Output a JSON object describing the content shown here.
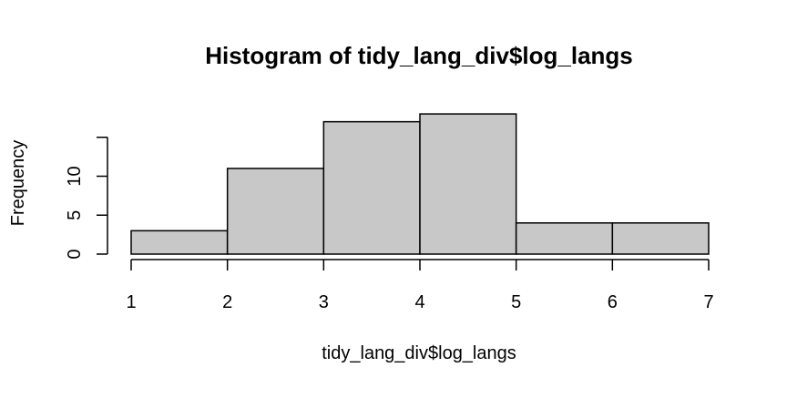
{
  "chart_data": {
    "type": "bar",
    "title": "Histogram of tidy_lang_div$log_langs",
    "xlabel": "tidy_lang_div$log_langs",
    "ylabel": "Frequency",
    "bins": [
      {
        "x0": 1,
        "x1": 2,
        "count": 3
      },
      {
        "x0": 2,
        "x1": 3,
        "count": 11
      },
      {
        "x0": 3,
        "x1": 4,
        "count": 17
      },
      {
        "x0": 4,
        "x1": 5,
        "count": 18
      },
      {
        "x0": 5,
        "x1": 6,
        "count": 4
      },
      {
        "x0": 6,
        "x1": 7,
        "count": 4
      }
    ],
    "categories": [
      "1-2",
      "2-3",
      "3-4",
      "4-5",
      "5-6",
      "6-7"
    ],
    "values": [
      3,
      11,
      17,
      18,
      4,
      4
    ],
    "xlim": [
      1,
      7
    ],
    "ylim": [
      0,
      18
    ],
    "x_ticks": [
      1,
      2,
      3,
      4,
      5,
      6,
      7
    ],
    "x_tick_labels": [
      "1",
      "2",
      "3",
      "4",
      "5",
      "6",
      "7"
    ],
    "y_ticks": [
      0,
      5,
      10,
      15
    ],
    "y_tick_labels": [
      "0",
      "5",
      "10",
      ""
    ],
    "bar_fill": "#c8c8c8",
    "bar_stroke": "#000000",
    "grid": false,
    "legend": "none"
  }
}
